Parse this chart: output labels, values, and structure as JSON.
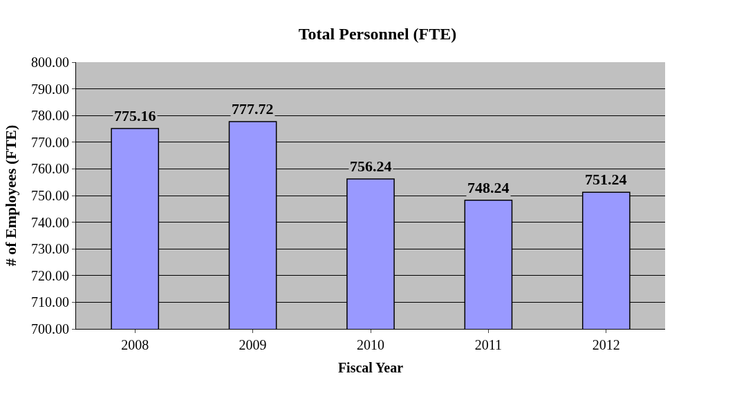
{
  "chart_data": {
    "type": "bar",
    "title": "Total Personnel (FTE)",
    "xlabel": "Fiscal Year",
    "ylabel": "# of Employees (FTE)",
    "categories": [
      "2008",
      "2009",
      "2010",
      "2011",
      "2012"
    ],
    "values": [
      775.16,
      777.72,
      756.24,
      748.24,
      751.24
    ],
    "color": "#9999ff",
    "ylim": [
      700,
      800
    ],
    "yticks": [
      {
        "value": 700,
        "label": "700.00"
      },
      {
        "value": 710,
        "label": "710.00"
      },
      {
        "value": 720,
        "label": "720.00"
      },
      {
        "value": 730,
        "label": "730.00"
      },
      {
        "value": 740,
        "label": "740.00"
      },
      {
        "value": 750,
        "label": "750.00"
      },
      {
        "value": 760,
        "label": "760.00"
      },
      {
        "value": 770,
        "label": "770.00"
      },
      {
        "value": 780,
        "label": "780.00"
      },
      {
        "value": 790,
        "label": "790.00"
      },
      {
        "value": 800,
        "label": "800.00"
      }
    ],
    "grid": "y",
    "data_labels": true,
    "legend": false
  }
}
